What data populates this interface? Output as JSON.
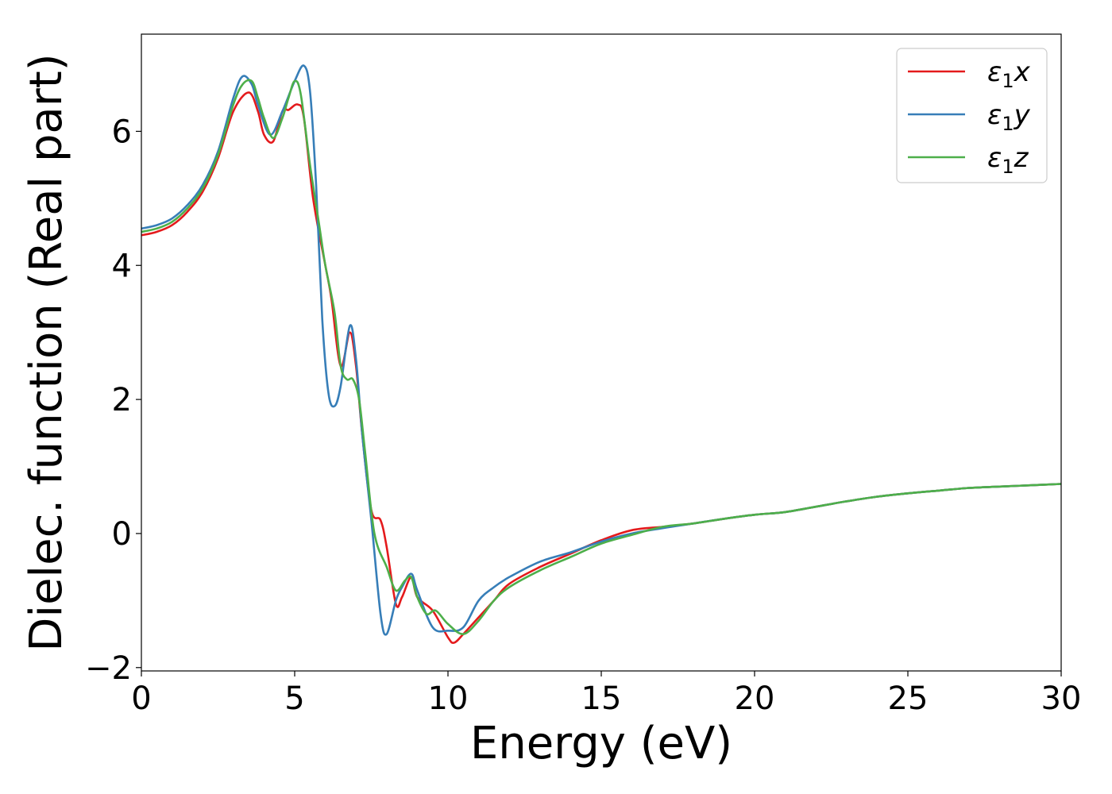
{
  "chart_data": {
    "type": "line",
    "title": "",
    "xlabel": "Energy (eV)",
    "ylabel": "Dielec. function (Real part)",
    "xlim": [
      0,
      30
    ],
    "ylim": [
      -2.05,
      7.45
    ],
    "xticks": [
      0,
      5,
      10,
      15,
      20,
      25,
      30
    ],
    "xtick_labels": [
      "0",
      "5",
      "10",
      "15",
      "20",
      "25",
      "30"
    ],
    "yticks": [
      -2,
      0,
      2,
      4,
      6
    ],
    "ytick_labels": [
      "−2",
      "0",
      "2",
      "4",
      "6"
    ],
    "grid": false,
    "legend_position": "top-right",
    "series": [
      {
        "name": "ε₁x",
        "label_main": "ε",
        "label_sub": "1",
        "label_var": "x",
        "color": "#e41a1c",
        "x": [
          0,
          0.5,
          1,
          1.5,
          2,
          2.5,
          3,
          3.5,
          3.8,
          4,
          4.3,
          4.6,
          4.8,
          5.1,
          5.3,
          5.6,
          6.0,
          6.2,
          6.5,
          6.8,
          7.0,
          7.2,
          7.5,
          7.8,
          8.0,
          8.3,
          8.5,
          8.8,
          9.0,
          9.5,
          10,
          10.2,
          10.5,
          11,
          11.5,
          12,
          13,
          14,
          15,
          16,
          17,
          18,
          19,
          20,
          21,
          22,
          23,
          24,
          25,
          26,
          27,
          28,
          29,
          30
        ],
        "y": [
          4.45,
          4.5,
          4.6,
          4.8,
          5.1,
          5.6,
          6.3,
          6.58,
          6.3,
          5.95,
          5.85,
          6.3,
          6.32,
          6.4,
          6.2,
          5.0,
          4.0,
          3.5,
          2.5,
          3.0,
          2.5,
          1.5,
          0.35,
          0.2,
          -0.2,
          -1.05,
          -0.95,
          -0.65,
          -0.95,
          -1.15,
          -1.55,
          -1.63,
          -1.5,
          -1.25,
          -1.0,
          -0.75,
          -0.5,
          -0.3,
          -0.1,
          0.05,
          0.1,
          0.15,
          0.22,
          0.28,
          0.32,
          0.4,
          0.48,
          0.55,
          0.6,
          0.64,
          0.68,
          0.7,
          0.72,
          0.74
        ]
      },
      {
        "name": "ε₁y",
        "label_main": "ε",
        "label_sub": "1",
        "label_var": "y",
        "color": "#377eb8",
        "x": [
          0,
          0.5,
          1,
          1.5,
          2,
          2.5,
          3,
          3.3,
          3.6,
          3.8,
          4.2,
          4.6,
          5.0,
          5.3,
          5.5,
          5.7,
          5.9,
          6.1,
          6.3,
          6.5,
          6.8,
          7.0,
          7.2,
          7.5,
          7.8,
          8.0,
          8.3,
          8.5,
          8.8,
          9.0,
          9.5,
          10,
          10.5,
          11,
          11.5,
          12,
          13,
          14,
          15,
          16,
          17,
          18,
          19,
          20,
          21,
          22,
          23,
          24,
          25,
          26,
          27,
          28,
          29,
          30
        ],
        "y": [
          4.55,
          4.6,
          4.7,
          4.9,
          5.2,
          5.7,
          6.5,
          6.82,
          6.7,
          6.4,
          5.95,
          6.3,
          6.75,
          6.98,
          6.6,
          5.2,
          3.2,
          2.1,
          1.9,
          2.2,
          3.1,
          2.6,
          1.5,
          0.2,
          -1.2,
          -1.5,
          -1.0,
          -0.8,
          -0.6,
          -0.85,
          -1.4,
          -1.45,
          -1.4,
          -1.0,
          -0.8,
          -0.65,
          -0.42,
          -0.28,
          -0.12,
          0.0,
          0.08,
          0.15,
          0.22,
          0.28,
          0.32,
          0.4,
          0.48,
          0.55,
          0.6,
          0.64,
          0.68,
          0.7,
          0.72,
          0.74
        ]
      },
      {
        "name": "ε₁z",
        "label_main": "ε",
        "label_sub": "1",
        "label_var": "z",
        "color": "#4daf4a",
        "x": [
          0,
          0.5,
          1,
          1.5,
          2,
          2.5,
          3,
          3.3,
          3.6,
          3.8,
          4.0,
          4.3,
          4.6,
          4.8,
          5.0,
          5.2,
          5.5,
          5.8,
          6.0,
          6.3,
          6.5,
          6.7,
          6.9,
          7.1,
          7.3,
          7.6,
          8.0,
          8.3,
          8.6,
          8.8,
          9.0,
          9.3,
          9.6,
          10,
          10.5,
          11,
          11.5,
          12,
          13,
          14,
          15,
          16,
          17,
          18,
          19,
          20,
          21,
          22,
          23,
          24,
          25,
          26,
          27,
          28,
          29,
          30
        ],
        "y": [
          4.5,
          4.55,
          4.65,
          4.85,
          5.15,
          5.65,
          6.4,
          6.7,
          6.75,
          6.5,
          6.2,
          5.9,
          6.2,
          6.5,
          6.75,
          6.55,
          5.5,
          4.6,
          4.0,
          3.3,
          2.5,
          2.3,
          2.3,
          2.0,
          1.2,
          0.0,
          -0.5,
          -0.85,
          -0.7,
          -0.65,
          -0.95,
          -1.2,
          -1.15,
          -1.35,
          -1.5,
          -1.3,
          -1.0,
          -0.8,
          -0.55,
          -0.35,
          -0.15,
          -0.02,
          0.1,
          0.15,
          0.22,
          0.28,
          0.32,
          0.4,
          0.48,
          0.55,
          0.6,
          0.64,
          0.68,
          0.7,
          0.72,
          0.74
        ]
      }
    ]
  }
}
